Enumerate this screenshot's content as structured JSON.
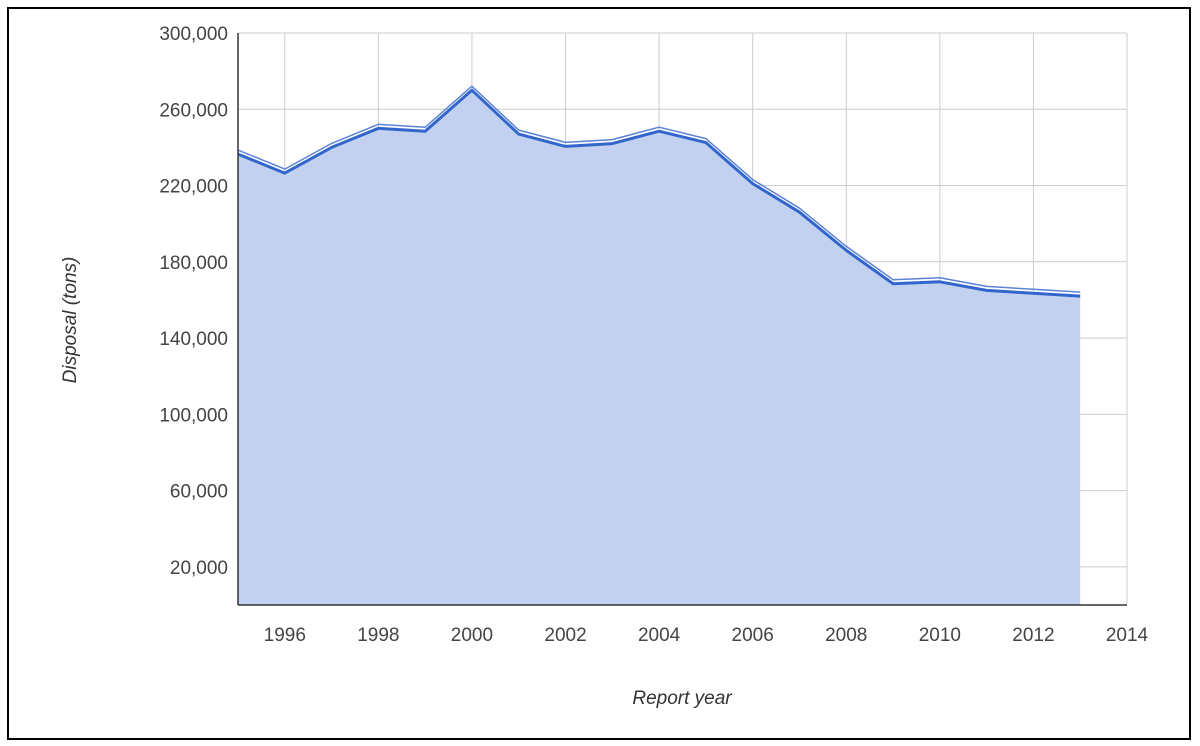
{
  "chart_data": {
    "type": "area",
    "title": "",
    "xlabel": "Report year",
    "ylabel": "Disposal (tons)",
    "xlim": [
      1995,
      2014
    ],
    "ylim": [
      0,
      300000
    ],
    "x_ticks": [
      "1996",
      "1998",
      "2000",
      "2002",
      "2004",
      "2006",
      "2008",
      "2010",
      "2012",
      "2014"
    ],
    "y_ticks": [
      "20,000",
      "60,000",
      "100,000",
      "140,000",
      "180,000",
      "220,000",
      "260,000",
      "300,000"
    ],
    "grid": true,
    "legend": "none",
    "series": [
      {
        "color": "#3366cc",
        "fill": "#c2d1f0",
        "x": [
          1995,
          1996,
          1997,
          1998,
          1999,
          2000,
          2001,
          2002,
          2003,
          2004,
          2005,
          2006,
          2007,
          2008,
          2009,
          2010,
          2011,
          2012,
          2013
        ],
        "values": [
          236500,
          226500,
          240000,
          250000,
          248500,
          270000,
          247000,
          240500,
          242000,
          248500,
          242500,
          221000,
          206000,
          186000,
          168500,
          169500,
          165000,
          163500,
          162000
        ]
      }
    ]
  }
}
